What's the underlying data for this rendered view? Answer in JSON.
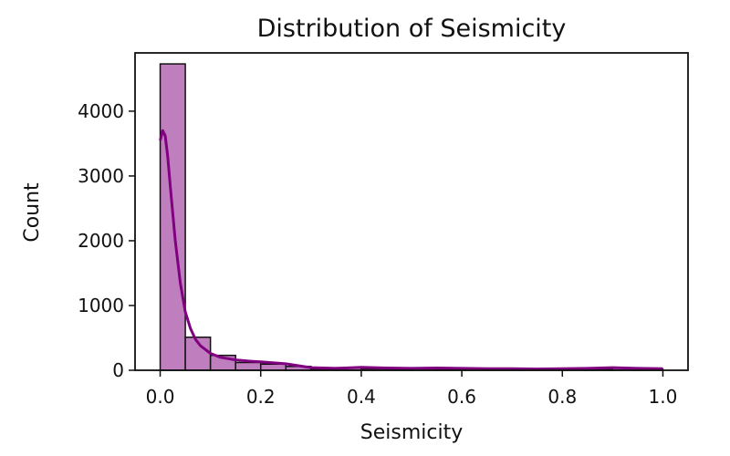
{
  "chart_data": {
    "type": "histogram",
    "title": "Distribution of Seismicity",
    "xlabel": "Seismicity",
    "ylabel": "Count",
    "xlim": [
      -0.05,
      1.05
    ],
    "ylim": [
      0,
      4900
    ],
    "xticks": [
      0.0,
      0.2,
      0.4,
      0.6,
      0.8,
      1.0
    ],
    "xtick_labels": [
      "0.0",
      "0.2",
      "0.4",
      "0.6",
      "0.8",
      "1.0"
    ],
    "yticks": [
      0,
      1000,
      2000,
      3000,
      4000
    ],
    "ytick_labels": [
      "0",
      "1000",
      "2000",
      "3000",
      "4000"
    ],
    "grid": false,
    "bin_width": 0.05,
    "bins": [
      {
        "start": 0.0,
        "end": 0.05,
        "count": 4730
      },
      {
        "start": 0.05,
        "end": 0.1,
        "count": 510
      },
      {
        "start": 0.1,
        "end": 0.15,
        "count": 230
      },
      {
        "start": 0.15,
        "end": 0.2,
        "count": 120
      },
      {
        "start": 0.2,
        "end": 0.25,
        "count": 95
      },
      {
        "start": 0.25,
        "end": 0.3,
        "count": 60
      },
      {
        "start": 0.3,
        "end": 0.35,
        "count": 20
      },
      {
        "start": 0.35,
        "end": 0.4,
        "count": 40
      },
      {
        "start": 0.4,
        "end": 0.45,
        "count": 25
      },
      {
        "start": 0.45,
        "end": 0.5,
        "count": 20
      },
      {
        "start": 0.5,
        "end": 0.55,
        "count": 30
      },
      {
        "start": 0.55,
        "end": 0.6,
        "count": 20
      },
      {
        "start": 0.6,
        "end": 0.65,
        "count": 15
      },
      {
        "start": 0.65,
        "end": 0.7,
        "count": 15
      },
      {
        "start": 0.7,
        "end": 0.75,
        "count": 15
      },
      {
        "start": 0.75,
        "end": 0.8,
        "count": 10
      },
      {
        "start": 0.8,
        "end": 0.85,
        "count": 15
      },
      {
        "start": 0.85,
        "end": 0.9,
        "count": 15
      },
      {
        "start": 0.9,
        "end": 0.95,
        "count": 35
      },
      {
        "start": 0.95,
        "end": 1.0,
        "count": 20
      }
    ],
    "kde": {
      "x": [
        0.0,
        0.005,
        0.01,
        0.015,
        0.02,
        0.03,
        0.04,
        0.05,
        0.06,
        0.07,
        0.08,
        0.1,
        0.12,
        0.15,
        0.18,
        0.2,
        0.25,
        0.3,
        0.35,
        0.4,
        0.45,
        0.5,
        0.55,
        0.6,
        0.65,
        0.7,
        0.75,
        0.8,
        0.85,
        0.9,
        0.95,
        1.0
      ],
      "y": [
        3550,
        3700,
        3620,
        3300,
        2850,
        2000,
        1350,
        900,
        650,
        480,
        380,
        260,
        200,
        160,
        140,
        130,
        100,
        40,
        30,
        45,
        35,
        30,
        35,
        30,
        25,
        25,
        20,
        25,
        30,
        40,
        30,
        25
      ]
    },
    "colors": {
      "bar_fill": "#bf7fbf",
      "bar_edge": "#111111",
      "kde_line": "#800080",
      "axis": "#111111",
      "background": "#ffffff"
    }
  }
}
